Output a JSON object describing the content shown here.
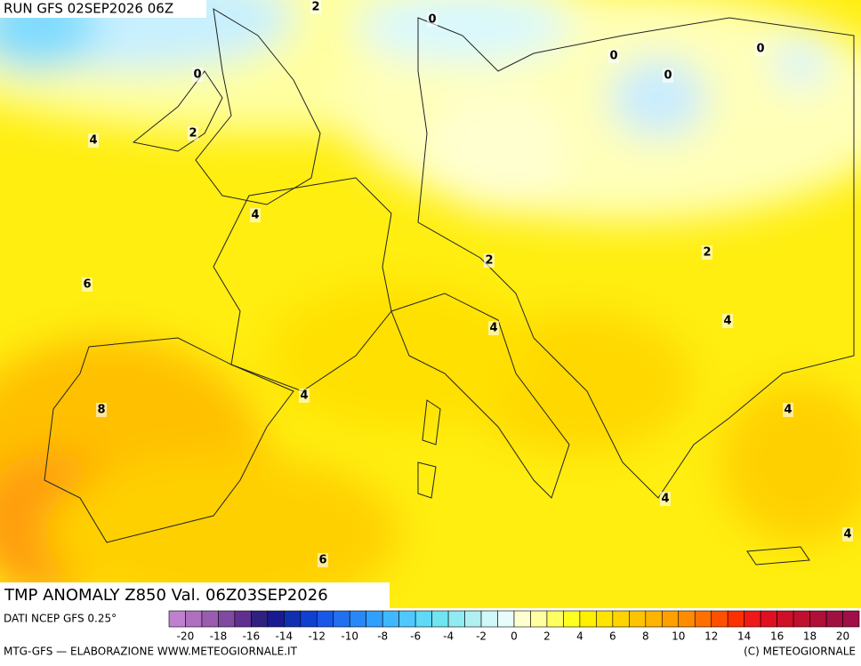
{
  "run_label": "RUN GFS 02SEP2026 06Z",
  "title": "TMP ANOMALY Z850 Val. 06Z03SEP2026",
  "source": "DATI NCEP GFS 0.25°",
  "footer_left": "MTG-GFS — ELABORAZIONE WWW.METEOGIORNALE.IT",
  "footer_right": "(C) METEOGIORNALE",
  "contour_labels": [
    2,
    0,
    0,
    0,
    0,
    0,
    4,
    2,
    4,
    2,
    2,
    6,
    4,
    4,
    4,
    8,
    4,
    4,
    6,
    4
  ],
  "scale": {
    "labels": [
      -20,
      -18,
      -16,
      -14,
      -12,
      -10,
      -8,
      -6,
      -4,
      -2,
      0,
      2,
      4,
      6,
      8,
      10,
      12,
      14,
      16,
      18,
      20
    ],
    "colors": [
      "#c080d0",
      "#b070c0",
      "#9a5cb0",
      "#804aa0",
      "#603090",
      "#302080",
      "#1a1a90",
      "#1030b0",
      "#1040d0",
      "#1858e8",
      "#2070f0",
      "#2888f8",
      "#30a0ff",
      "#40b8ff",
      "#50c8ff",
      "#60d8f8",
      "#70e4f0",
      "#90ecf0",
      "#b0f0f0",
      "#d0f8f8",
      "#e8fcfc",
      "#ffffd0",
      "#ffffa0",
      "#ffff60",
      "#ffff20",
      "#fff000",
      "#ffe400",
      "#ffd400",
      "#ffc400",
      "#ffb400",
      "#ffa000",
      "#ff8c00",
      "#ff7000",
      "#ff5000",
      "#ff3000",
      "#f01818",
      "#e01020",
      "#d01028",
      "#c01030",
      "#b01038",
      "#a01040",
      "#a01048"
    ]
  }
}
